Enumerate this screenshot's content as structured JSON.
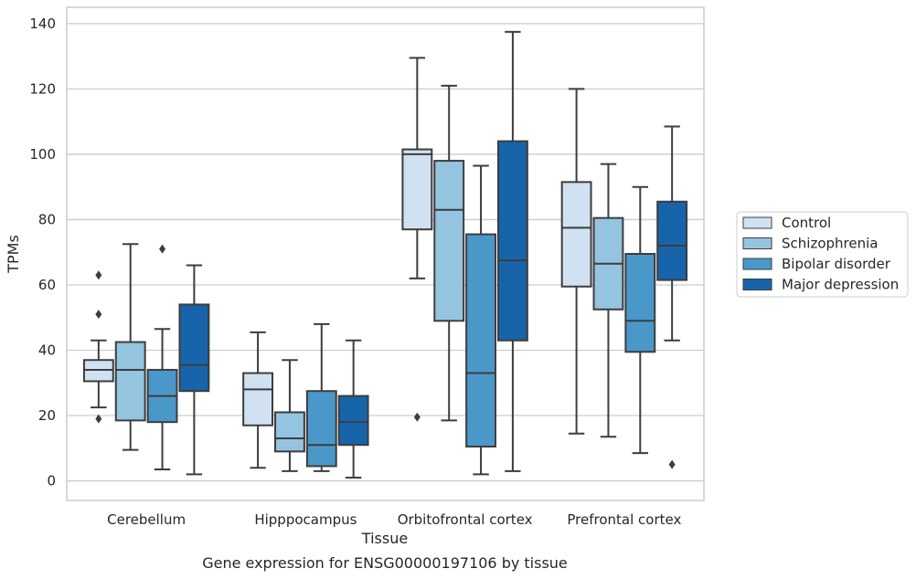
{
  "chart_data": {
    "type": "box",
    "title": "",
    "caption": "Gene expression for ENSG00000197106 by tissue",
    "xlabel": "Tissue",
    "ylabel": "TPMs",
    "ylim": [
      -6,
      145
    ],
    "yticks": [
      0,
      20,
      40,
      60,
      80,
      100,
      120,
      140
    ],
    "grid": true,
    "legend_position": "right",
    "categories": [
      "Cerebellum",
      "Hipppocampus",
      "Orbitofrontal cortex",
      "Prefrontal cortex"
    ],
    "series": [
      {
        "name": "Control",
        "color": "#d0e1f2",
        "boxes": [
          {
            "whislo": 22.5,
            "q1": 30.5,
            "med": 34,
            "q3": 37,
            "whishi": 43,
            "fliers": [
              19,
              51,
              63
            ]
          },
          {
            "whislo": 4,
            "q1": 17,
            "med": 28,
            "q3": 33,
            "whishi": 45.5,
            "fliers": []
          },
          {
            "whislo": 62,
            "q1": 77,
            "med": 100,
            "q3": 101.5,
            "whishi": 129.5,
            "fliers": [
              19.5
            ]
          },
          {
            "whislo": 14.5,
            "q1": 59.5,
            "med": 77.5,
            "q3": 91.5,
            "whishi": 120,
            "fliers": []
          }
        ]
      },
      {
        "name": "Schizophrenia",
        "color": "#94c4df",
        "boxes": [
          {
            "whislo": 9.5,
            "q1": 18.5,
            "med": 34,
            "q3": 42.5,
            "whishi": 72.5,
            "fliers": []
          },
          {
            "whislo": 3,
            "q1": 9,
            "med": 13,
            "q3": 21,
            "whishi": 37,
            "fliers": []
          },
          {
            "whislo": 18.5,
            "q1": 49,
            "med": 83,
            "q3": 98,
            "whishi": 121,
            "fliers": []
          },
          {
            "whislo": 13.5,
            "q1": 52.5,
            "med": 66.5,
            "q3": 80.5,
            "whishi": 97,
            "fliers": []
          }
        ]
      },
      {
        "name": "Bipolar disorder",
        "color": "#4a98c9",
        "boxes": [
          {
            "whislo": 3.5,
            "q1": 18,
            "med": 26,
            "q3": 34,
            "whishi": 46.5,
            "fliers": [
              71
            ]
          },
          {
            "whislo": 3,
            "q1": 4.5,
            "med": 11,
            "q3": 27.5,
            "whishi": 48,
            "fliers": []
          },
          {
            "whislo": 2,
            "q1": 10.5,
            "med": 33,
            "q3": 75.5,
            "whishi": 96.5,
            "fliers": []
          },
          {
            "whislo": 8.5,
            "q1": 39.5,
            "med": 49,
            "q3": 69.5,
            "whishi": 90,
            "fliers": []
          }
        ]
      },
      {
        "name": "Major depression",
        "color": "#1764ab",
        "boxes": [
          {
            "whislo": 2,
            "q1": 27.5,
            "med": 35.5,
            "q3": 54,
            "whishi": 66,
            "fliers": []
          },
          {
            "whislo": 1,
            "q1": 11,
            "med": 18,
            "q3": 26,
            "whishi": 43,
            "fliers": []
          },
          {
            "whislo": 3,
            "q1": 43,
            "med": 67.5,
            "q3": 104,
            "whishi": 137.5,
            "fliers": []
          },
          {
            "whislo": 43,
            "q1": 61.5,
            "med": 72,
            "q3": 85.5,
            "whishi": 108.5,
            "fliers": [
              5
            ]
          }
        ]
      }
    ]
  }
}
